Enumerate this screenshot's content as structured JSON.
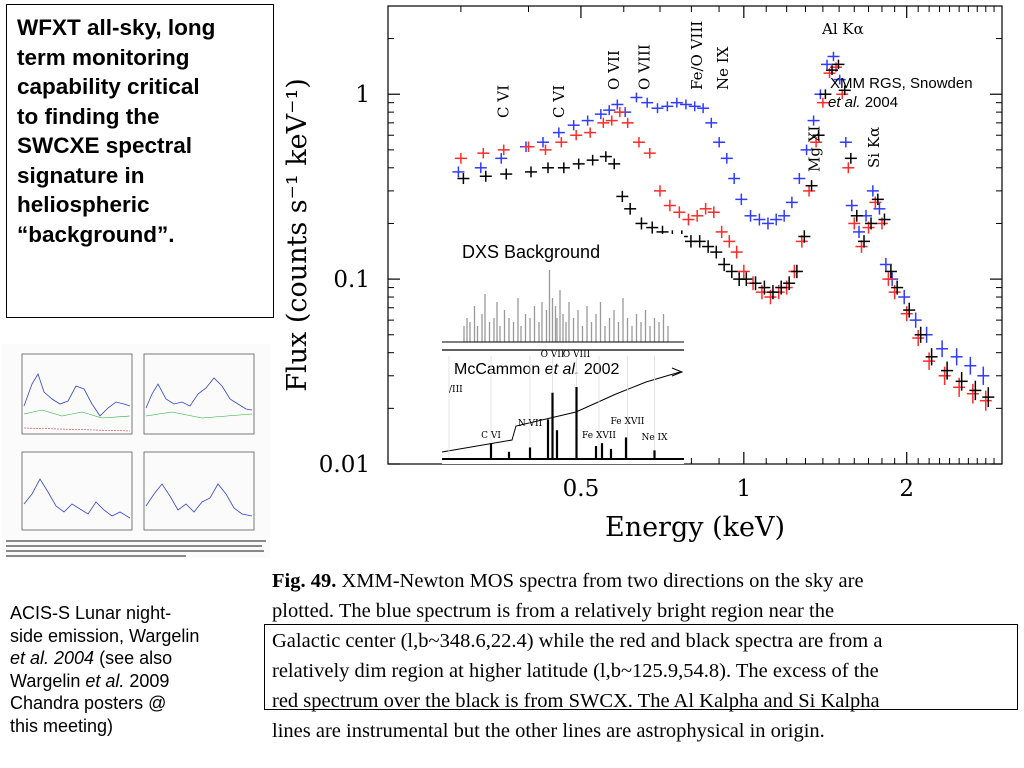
{
  "slide": {
    "textbox": [
      "WFXT all-sky, long",
      "term monitoring",
      "capability critical",
      "to finding the",
      "SWCXE spectral",
      "signature in",
      "heliospheric",
      "“background”."
    ],
    "acis_label": {
      "line1": "ACIS-S Lunar night-",
      "line2": "side emission, Wargelin",
      "l3_italic": "et al. 2004",
      "l3_rest": " (see also",
      "l4_pre": "Wargelin ",
      "l4_italic": "et al.",
      "l4_rest": " 2009",
      "line5": "Chandra posters @",
      "line6": "this meeting)"
    },
    "caption": {
      "label": "Fig. 49.",
      "lines": [
        " XMM-Newton MOS spectra from two directions on the sky are",
        "plotted. The blue spectrum is from a relatively bright region near the",
        "Galactic center (l,b~348.6,22.4) while the red and black spectra are from a",
        "relatively dim region at higher latitude (l,b~125.9,54.8). The excess of the",
        "red spectrum over the black is from SWCX. The Al Kalpha and Si Kalpha",
        "lines are instrumental but the other lines are astrophysical in origin."
      ]
    }
  },
  "chart_data": [
    {
      "type": "scatter",
      "xlabel": "Energy (keV)",
      "ylabel": "Flux (counts s⁻¹ keV⁻¹)",
      "y_scale": "log",
      "xlim": [
        0.22,
        3.0
      ],
      "ylim": [
        0.01,
        3.0
      ],
      "x_ticks": [
        {
          "v": 0.5,
          "label": "0.5"
        },
        {
          "v": 1,
          "label": "1"
        },
        {
          "v": 2,
          "label": "2"
        }
      ],
      "y_ticks": [
        {
          "v": 0.01,
          "label": "0.01"
        },
        {
          "v": 0.1,
          "label": "0.1"
        },
        {
          "v": 1,
          "label": "1"
        }
      ],
      "line_labels": [
        {
          "text": "C VI",
          "x": 0.36
        },
        {
          "text": "C VI",
          "x": 0.455
        },
        {
          "text": "O VII",
          "x": 0.575
        },
        {
          "text": "O VIII",
          "x": 0.655
        },
        {
          "text": "Fe/O VIII",
          "x": 0.82
        },
        {
          "text": "Ne IX",
          "x": 0.915
        },
        {
          "text": "Mg XI",
          "x": 1.35
        },
        {
          "text": "Al Kα",
          "x": 1.486
        },
        {
          "text": "Si Kα",
          "x": 1.74
        }
      ],
      "annotation": {
        "text": "XMM RGS, Snowden",
        "text_italic": "et al.",
        "text_rest": " 2004"
      },
      "series": [
        {
          "color": "#2f3bff",
          "x": [
            0.3,
            0.33,
            0.36,
            0.4,
            0.43,
            0.46,
            0.49,
            0.52,
            0.55,
            0.57,
            0.59,
            0.61,
            0.64,
            0.67,
            0.7,
            0.73,
            0.76,
            0.79,
            0.82,
            0.85,
            0.88,
            0.91,
            0.94,
            0.97,
            1.0,
            1.04,
            1.08,
            1.12,
            1.16,
            1.2,
            1.24,
            1.28,
            1.32,
            1.36,
            1.4,
            1.44,
            1.48,
            1.52,
            1.56,
            1.6,
            1.65,
            1.7,
            1.75,
            1.8,
            1.85,
            1.9,
            2.0,
            2.1,
            2.2,
            2.35,
            2.5,
            2.65,
            2.8
          ],
          "y": [
            0.38,
            0.4,
            0.45,
            0.52,
            0.55,
            0.62,
            0.68,
            0.72,
            0.78,
            0.82,
            0.88,
            0.8,
            0.96,
            0.9,
            0.84,
            0.86,
            0.9,
            0.88,
            0.86,
            0.84,
            0.7,
            0.55,
            0.45,
            0.35,
            0.27,
            0.22,
            0.21,
            0.2,
            0.21,
            0.22,
            0.26,
            0.35,
            0.5,
            0.72,
            1.0,
            1.45,
            1.6,
            1.2,
            0.55,
            0.25,
            0.18,
            0.22,
            0.3,
            0.24,
            0.12,
            0.1,
            0.08,
            0.06,
            0.05,
            0.042,
            0.038,
            0.034,
            0.03
          ]
        },
        {
          "color": "#ff2a2a",
          "x": [
            0.3,
            0.33,
            0.36,
            0.4,
            0.43,
            0.46,
            0.49,
            0.52,
            0.55,
            0.57,
            0.59,
            0.61,
            0.64,
            0.67,
            0.7,
            0.73,
            0.76,
            0.79,
            0.82,
            0.85,
            0.88,
            0.91,
            0.94,
            0.97,
            1.0,
            1.04,
            1.08,
            1.12,
            1.16,
            1.2,
            1.24,
            1.28,
            1.32,
            1.36,
            1.4,
            1.44,
            1.48,
            1.52,
            1.56,
            1.6,
            1.65,
            1.7,
            1.75,
            1.8,
            1.85,
            1.9,
            2.0,
            2.1,
            2.2,
            2.35,
            2.5,
            2.65,
            2.8
          ],
          "y": [
            0.45,
            0.48,
            0.5,
            0.52,
            0.5,
            0.55,
            0.6,
            0.62,
            0.7,
            0.72,
            0.8,
            0.7,
            0.55,
            0.48,
            0.3,
            0.25,
            0.23,
            0.21,
            0.22,
            0.24,
            0.23,
            0.18,
            0.16,
            0.14,
            0.11,
            0.095,
            0.085,
            0.08,
            0.085,
            0.09,
            0.11,
            0.16,
            0.3,
            0.55,
            0.9,
            1.3,
            1.4,
            1.0,
            0.4,
            0.2,
            0.15,
            0.19,
            0.26,
            0.2,
            0.1,
            0.085,
            0.065,
            0.048,
            0.036,
            0.03,
            0.026,
            0.024,
            0.022
          ]
        },
        {
          "color": "#000000",
          "x": [
            0.3,
            0.33,
            0.36,
            0.4,
            0.43,
            0.46,
            0.49,
            0.52,
            0.55,
            0.57,
            0.59,
            0.61,
            0.64,
            0.67,
            0.7,
            0.73,
            0.76,
            0.79,
            0.82,
            0.85,
            0.88,
            0.91,
            0.94,
            0.97,
            1.0,
            1.04,
            1.08,
            1.12,
            1.16,
            1.2,
            1.24,
            1.28,
            1.32,
            1.36,
            1.4,
            1.44,
            1.48,
            1.52,
            1.56,
            1.6,
            1.65,
            1.7,
            1.75,
            1.8,
            1.85,
            1.9,
            2.0,
            2.1,
            2.2,
            2.35,
            2.5,
            2.65,
            2.8
          ],
          "y": [
            0.35,
            0.36,
            0.37,
            0.38,
            0.4,
            0.4,
            0.42,
            0.44,
            0.46,
            0.42,
            0.28,
            0.24,
            0.2,
            0.19,
            0.18,
            0.17,
            0.17,
            0.16,
            0.16,
            0.15,
            0.14,
            0.12,
            0.11,
            0.1,
            0.1,
            0.095,
            0.09,
            0.085,
            0.09,
            0.095,
            0.11,
            0.17,
            0.32,
            0.6,
            1.0,
            1.35,
            1.45,
            1.05,
            0.45,
            0.22,
            0.16,
            0.2,
            0.27,
            0.21,
            0.11,
            0.09,
            0.068,
            0.05,
            0.038,
            0.032,
            0.028,
            0.025,
            0.023
          ]
        }
      ]
    },
    {
      "type": "bar",
      "title": "DXS Background",
      "x_domain": [
        0.22,
        1.0
      ],
      "x": [
        0.28,
        0.29,
        0.3,
        0.315,
        0.325,
        0.34,
        0.35,
        0.365,
        0.38,
        0.39,
        0.4,
        0.415,
        0.43,
        0.445,
        0.46,
        0.47,
        0.485,
        0.5,
        0.515,
        0.53,
        0.54,
        0.555,
        0.565,
        0.575,
        0.585,
        0.59,
        0.6,
        0.61,
        0.62,
        0.63,
        0.645,
        0.66,
        0.675,
        0.69,
        0.705,
        0.72,
        0.735,
        0.75,
        0.765,
        0.78,
        0.795,
        0.81,
        0.825,
        0.84,
        0.855,
        0.87,
        0.885,
        0.9,
        0.915,
        0.93,
        0.945,
        0.96
      ],
      "values": [
        0.2,
        0.3,
        0.25,
        0.45,
        0.2,
        0.35,
        0.6,
        0.25,
        0.3,
        0.5,
        0.2,
        0.4,
        0.3,
        0.25,
        0.55,
        0.2,
        0.35,
        0.3,
        0.45,
        0.25,
        0.5,
        0.4,
        0.9,
        0.55,
        0.45,
        0.3,
        0.65,
        0.35,
        0.25,
        0.5,
        0.3,
        0.4,
        0.2,
        0.45,
        0.25,
        0.35,
        0.5,
        0.2,
        0.3,
        0.4,
        0.25,
        0.55,
        0.3,
        0.2,
        0.35,
        0.25,
        0.4,
        0.2,
        0.3,
        0.25,
        0.35,
        0.2
      ]
    },
    {
      "type": "line",
      "annotation": {
        "text": "McCammon ",
        "text_italic": "et al.",
        "text_rest": " 2002"
      },
      "x_domain": [
        0.22,
        1.0
      ],
      "line_labels": [
        {
          "text": "/III",
          "x": 0.23
        },
        {
          "text": "C VI",
          "x": 0.37
        },
        {
          "text": "N VII",
          "x": 0.5
        },
        {
          "text": "O VII",
          "x": 0.575
        },
        {
          "text": "O VIII",
          "x": 0.655
        },
        {
          "text": "Fe XVII",
          "x": 0.73
        },
        {
          "text": "Fe XVII",
          "x": 0.825
        },
        {
          "text": "Ne IX",
          "x": 0.915
        }
      ],
      "peaks": [
        {
          "x": 0.37,
          "h": 0.22
        },
        {
          "x": 0.43,
          "h": 0.1
        },
        {
          "x": 0.5,
          "h": 0.16
        },
        {
          "x": 0.56,
          "h": 0.55
        },
        {
          "x": 0.575,
          "h": 0.92
        },
        {
          "x": 0.59,
          "h": 0.4
        },
        {
          "x": 0.655,
          "h": 1.0
        },
        {
          "x": 0.72,
          "h": 0.18
        },
        {
          "x": 0.74,
          "h": 0.22
        },
        {
          "x": 0.77,
          "h": 0.14
        },
        {
          "x": 0.82,
          "h": 0.3
        },
        {
          "x": 0.915,
          "h": 0.12
        }
      ]
    }
  ]
}
